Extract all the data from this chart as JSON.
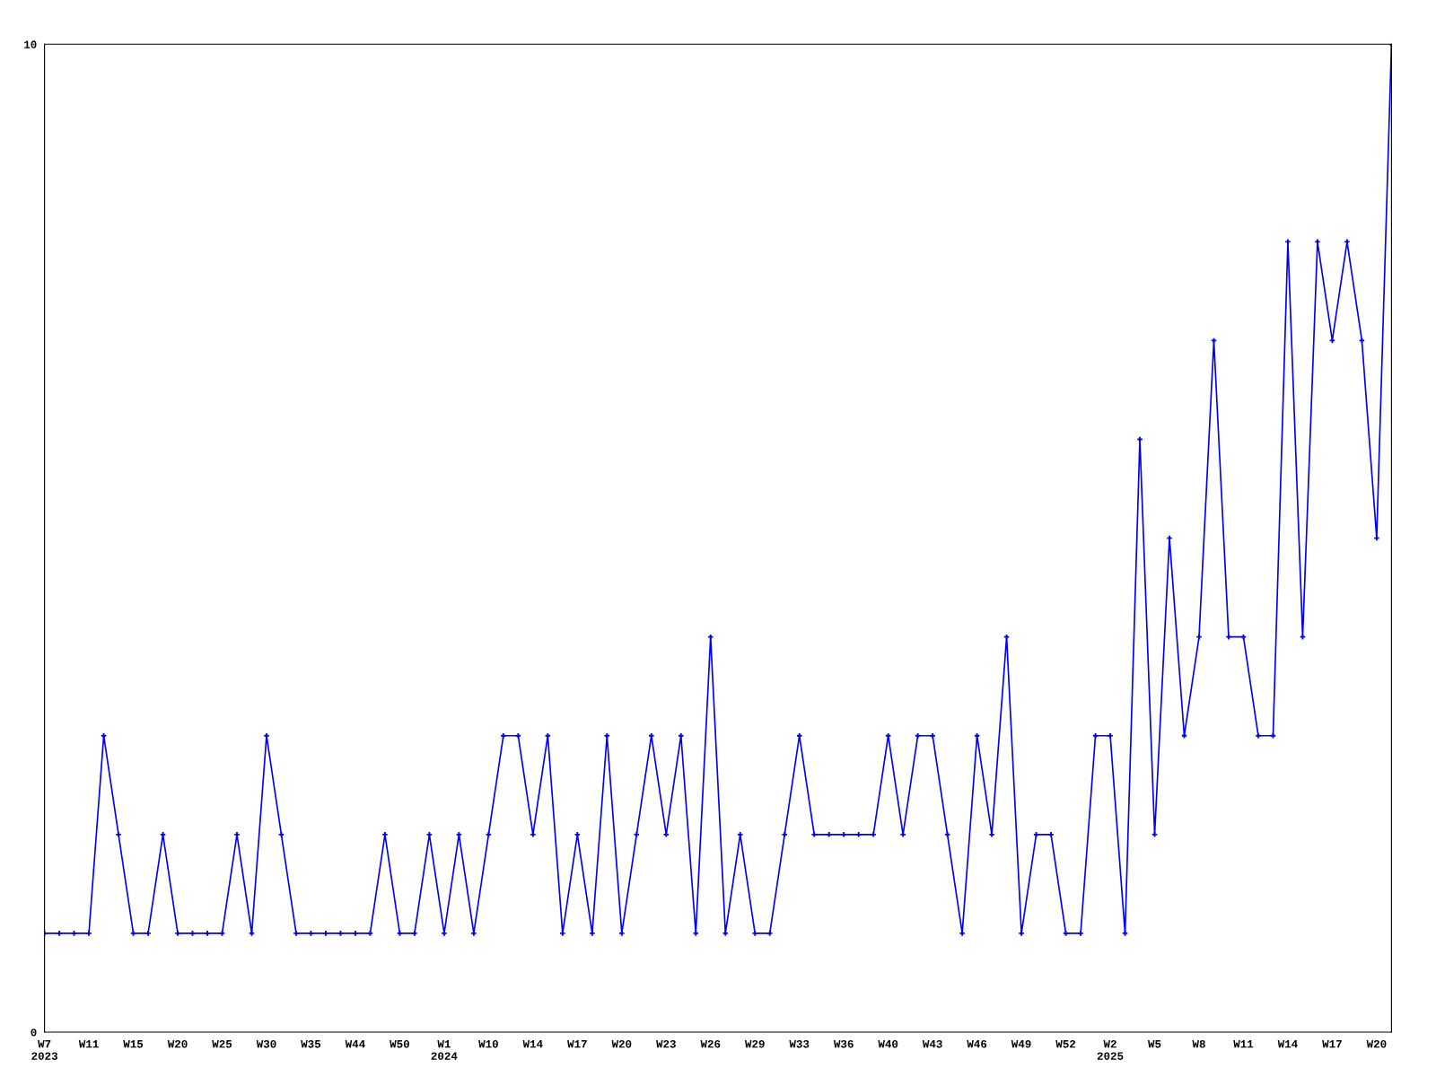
{
  "chart_data": {
    "type": "line",
    "categories": [
      "W7\n2023",
      null,
      null,
      "W11",
      null,
      null,
      "W15",
      null,
      null,
      "W20",
      null,
      null,
      "W25",
      null,
      null,
      "W30",
      null,
      null,
      "W35",
      null,
      null,
      "W44",
      null,
      null,
      "W50",
      null,
      null,
      "W1\n2024",
      null,
      null,
      "W10",
      null,
      null,
      "W14",
      null,
      null,
      "W17",
      null,
      null,
      "W20",
      null,
      null,
      "W23",
      null,
      null,
      "W26",
      null,
      null,
      "W29",
      null,
      null,
      "W33",
      null,
      null,
      "W36",
      null,
      null,
      "W40",
      null,
      null,
      "W43",
      null,
      null,
      "W46",
      null,
      null,
      "W49",
      null,
      null,
      "W52",
      null,
      null,
      "W2\n2025",
      null,
      null,
      "W5",
      null,
      null,
      "W8",
      null,
      null,
      "W11",
      null,
      null,
      "W14",
      null,
      null,
      "W17",
      null,
      null,
      "W20",
      null
    ],
    "series": [
      {
        "color": "#0000ff",
        "values": [
          1,
          1,
          1,
          1,
          3,
          2,
          1,
          1,
          2,
          1,
          1,
          1,
          1,
          2,
          1,
          3,
          2,
          1,
          1,
          1,
          1,
          1,
          1,
          2,
          1,
          1,
          2,
          1,
          2,
          1,
          2,
          3,
          3,
          2,
          3,
          1,
          2,
          1,
          3,
          1,
          2,
          3,
          2,
          3,
          1,
          4,
          1,
          2,
          1,
          1,
          2,
          3,
          2,
          2,
          2,
          2,
          2,
          3,
          2,
          3,
          3,
          2,
          1,
          3,
          2,
          4,
          1,
          2,
          2,
          1,
          1,
          3,
          3,
          1,
          6,
          2,
          5,
          3,
          4,
          7,
          4,
          4,
          3,
          3,
          8,
          4,
          8,
          7,
          8,
          7,
          5,
          10
        ]
      }
    ],
    "ylim": [
      0,
      10
    ],
    "yticks": [
      0,
      10
    ],
    "grid": false,
    "marker": "cross",
    "line_style": "solid"
  }
}
